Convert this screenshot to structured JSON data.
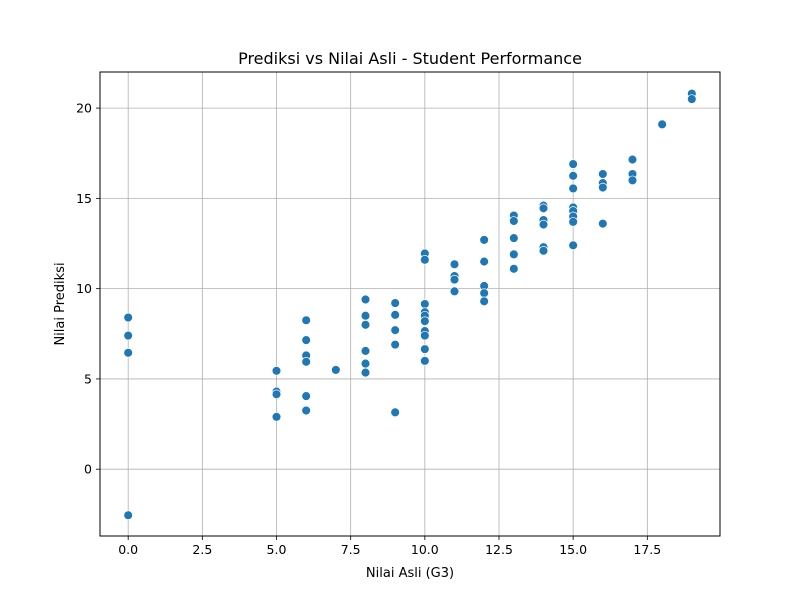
{
  "chart_data": {
    "type": "scatter",
    "title": "Prediksi vs Nilai Asli - Student Performance",
    "xlabel": "Nilai Asli (G3)",
    "ylabel": "Nilai Prediksi",
    "xlim": [
      -0.95,
      19.95
    ],
    "ylim": [
      -3.7,
      22.0
    ],
    "xticks": [
      0.0,
      2.5,
      5.0,
      7.5,
      10.0,
      12.5,
      15.0,
      17.5
    ],
    "xtick_labels": [
      "0.0",
      "2.5",
      "5.0",
      "7.5",
      "10.0",
      "12.5",
      "15.0",
      "17.5"
    ],
    "yticks": [
      0,
      5,
      10,
      15,
      20
    ],
    "ytick_labels": [
      "0",
      "5",
      "10",
      "15",
      "20"
    ],
    "grid": true,
    "marker_color": "#1f77b4",
    "points": [
      {
        "x": 0,
        "y": 8.4
      },
      {
        "x": 0,
        "y": 7.4
      },
      {
        "x": 0,
        "y": 6.45
      },
      {
        "x": 0,
        "y": -2.55
      },
      {
        "x": 5,
        "y": 5.45
      },
      {
        "x": 5,
        "y": 4.3
      },
      {
        "x": 5,
        "y": 4.15
      },
      {
        "x": 5,
        "y": 2.9
      },
      {
        "x": 6,
        "y": 8.25
      },
      {
        "x": 6,
        "y": 7.15
      },
      {
        "x": 6,
        "y": 6.3
      },
      {
        "x": 6,
        "y": 5.95
      },
      {
        "x": 6,
        "y": 4.05
      },
      {
        "x": 6,
        "y": 3.25
      },
      {
        "x": 7,
        "y": 5.5
      },
      {
        "x": 8,
        "y": 9.4
      },
      {
        "x": 8,
        "y": 8.5
      },
      {
        "x": 8,
        "y": 8.0
      },
      {
        "x": 8,
        "y": 6.55
      },
      {
        "x": 8,
        "y": 5.85
      },
      {
        "x": 8,
        "y": 5.35
      },
      {
        "x": 9,
        "y": 9.2
      },
      {
        "x": 9,
        "y": 8.55
      },
      {
        "x": 9,
        "y": 7.7
      },
      {
        "x": 9,
        "y": 6.9
      },
      {
        "x": 9,
        "y": 3.15
      },
      {
        "x": 10,
        "y": 11.95
      },
      {
        "x": 10,
        "y": 11.6
      },
      {
        "x": 10,
        "y": 9.15
      },
      {
        "x": 10,
        "y": 8.7
      },
      {
        "x": 10,
        "y": 8.5
      },
      {
        "x": 10,
        "y": 8.2
      },
      {
        "x": 10,
        "y": 7.65
      },
      {
        "x": 10,
        "y": 7.4
      },
      {
        "x": 10,
        "y": 6.65
      },
      {
        "x": 10,
        "y": 6.0
      },
      {
        "x": 11,
        "y": 11.35
      },
      {
        "x": 11,
        "y": 10.7
      },
      {
        "x": 11,
        "y": 10.5
      },
      {
        "x": 11,
        "y": 9.85
      },
      {
        "x": 12,
        "y": 12.7
      },
      {
        "x": 12,
        "y": 11.5
      },
      {
        "x": 12,
        "y": 10.15
      },
      {
        "x": 12,
        "y": 9.75
      },
      {
        "x": 12,
        "y": 9.3
      },
      {
        "x": 13,
        "y": 14.05
      },
      {
        "x": 13,
        "y": 13.75
      },
      {
        "x": 13,
        "y": 12.8
      },
      {
        "x": 13,
        "y": 11.9
      },
      {
        "x": 13,
        "y": 11.1
      },
      {
        "x": 14,
        "y": 14.6
      },
      {
        "x": 14,
        "y": 14.45
      },
      {
        "x": 14,
        "y": 13.8
      },
      {
        "x": 14,
        "y": 13.55
      },
      {
        "x": 14,
        "y": 12.3
      },
      {
        "x": 14,
        "y": 12.1
      },
      {
        "x": 15,
        "y": 16.9
      },
      {
        "x": 15,
        "y": 16.25
      },
      {
        "x": 15,
        "y": 15.55
      },
      {
        "x": 15,
        "y": 14.5
      },
      {
        "x": 15,
        "y": 14.3
      },
      {
        "x": 15,
        "y": 14.0
      },
      {
        "x": 15,
        "y": 13.7
      },
      {
        "x": 15,
        "y": 12.4
      },
      {
        "x": 16,
        "y": 16.35
      },
      {
        "x": 16,
        "y": 15.85
      },
      {
        "x": 16,
        "y": 15.6
      },
      {
        "x": 16,
        "y": 13.6
      },
      {
        "x": 17,
        "y": 17.15
      },
      {
        "x": 17,
        "y": 16.35
      },
      {
        "x": 17,
        "y": 16.0
      },
      {
        "x": 18,
        "y": 19.1
      },
      {
        "x": 19,
        "y": 20.8
      },
      {
        "x": 19,
        "y": 20.5
      }
    ]
  }
}
